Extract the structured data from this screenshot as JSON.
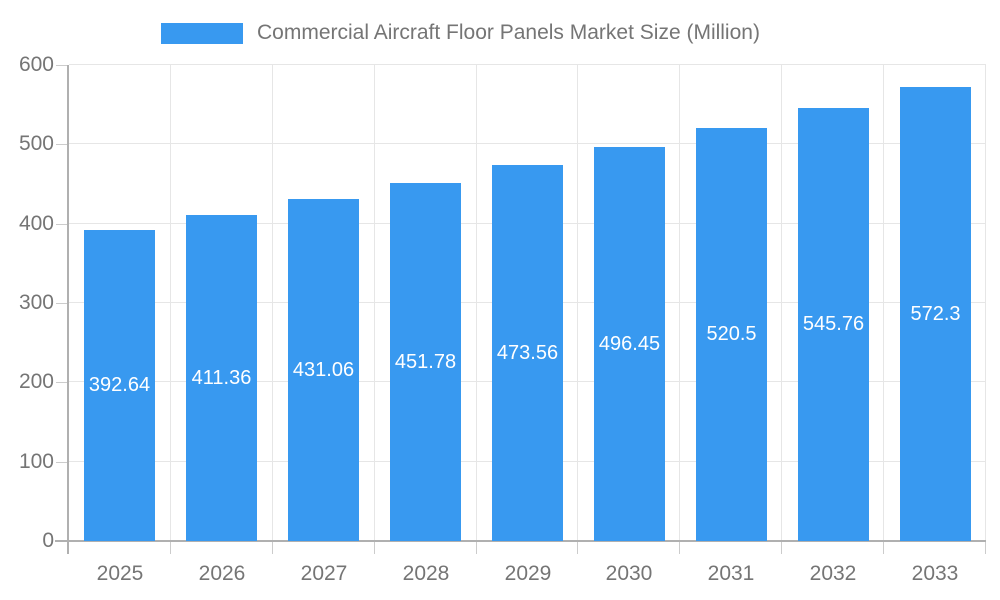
{
  "chart_data": {
    "type": "bar",
    "title": "Commercial Aircraft Floor Panels Market Size (Million)",
    "legend": {
      "entries": [
        "Commercial Aircraft Floor Panels Market Size (Million)"
      ],
      "position": "top"
    },
    "categories": [
      "2025",
      "2026",
      "2027",
      "2028",
      "2029",
      "2030",
      "2031",
      "2032",
      "2033"
    ],
    "values": [
      392.64,
      411.36,
      431.06,
      451.78,
      473.56,
      496.45,
      520.5,
      545.76,
      572.3
    ],
    "value_labels": [
      "392.64",
      "411.36",
      "431.06",
      "451.78",
      "473.56",
      "496.45",
      "520.5",
      "545.76",
      "572.3"
    ],
    "xlabel": "",
    "ylabel": "",
    "ylim": [
      0,
      600
    ],
    "yticks": [
      0,
      100,
      200,
      300,
      400,
      500,
      600
    ],
    "grid": true,
    "colors": {
      "bar": "#3899f0",
      "grid": "#e6e6e6",
      "axis": "#b0b0b0",
      "tick": "#cccccc",
      "text": "#757575",
      "value_label": "#ffffff",
      "background": "#ffffff"
    }
  }
}
